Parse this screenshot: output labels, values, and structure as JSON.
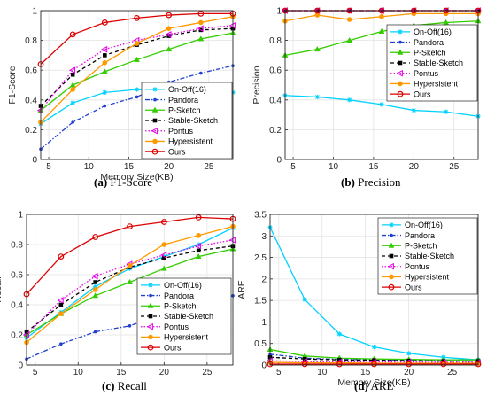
{
  "figure": {
    "captions": [
      {
        "tag": "(a)",
        "text": "F1-Score"
      },
      {
        "tag": "(b)",
        "text": "Precision"
      },
      {
        "tag": "(c)",
        "text": "Recall"
      },
      {
        "tag": "(d)",
        "text": "ARE"
      }
    ]
  },
  "chart_data": [
    {
      "type": "line",
      "title": "",
      "xlabel": "Memory Size(KB)",
      "ylabel": "F1-Score",
      "xlim": [
        4,
        28
      ],
      "ylim": [
        0,
        1
      ],
      "xticks": [
        "5",
        "10",
        "15",
        "20",
        "25"
      ],
      "yticks": [
        "0",
        "0.2",
        "0.4",
        "0.6",
        "0.8",
        "1"
      ],
      "grid": true,
      "legend_position": "bottom-right",
      "x": [
        4,
        8,
        12,
        16,
        20,
        24,
        28
      ],
      "series": [
        {
          "name": "On-Off(16)",
          "color": "#00d2ff",
          "marker": "star",
          "dash": "solid",
          "values": [
            0.24,
            0.38,
            0.45,
            0.47,
            0.46,
            0.45,
            0.45
          ]
        },
        {
          "name": "Pandora",
          "color": "#1f3fcf",
          "marker": "dot",
          "dash": "dashdot",
          "values": [
            0.07,
            0.25,
            0.36,
            0.42,
            0.52,
            0.58,
            0.63
          ]
        },
        {
          "name": "P-Sketch",
          "color": "#33cc00",
          "marker": "triangle",
          "dash": "solid",
          "values": [
            0.33,
            0.5,
            0.59,
            0.67,
            0.74,
            0.81,
            0.85
          ]
        },
        {
          "name": "Stable-Sketch",
          "color": "#000000",
          "marker": "square",
          "dash": "dashed",
          "values": [
            0.36,
            0.57,
            0.7,
            0.77,
            0.83,
            0.87,
            0.88
          ]
        },
        {
          "name": "Pontus",
          "color": "#e600e6",
          "marker": "tri-left",
          "dash": "dotted",
          "values": [
            0.33,
            0.6,
            0.74,
            0.8,
            0.84,
            0.88,
            0.9
          ]
        },
        {
          "name": "Hypersistent",
          "color": "#ff9900",
          "marker": "circle-filled",
          "dash": "solid",
          "values": [
            0.25,
            0.47,
            0.65,
            0.78,
            0.88,
            0.92,
            0.96
          ]
        },
        {
          "name": "Ours",
          "color": "#dd0000",
          "marker": "circle-open",
          "dash": "solid",
          "values": [
            0.64,
            0.84,
            0.92,
            0.95,
            0.97,
            0.98,
            0.98
          ]
        }
      ]
    },
    {
      "type": "line",
      "title": "",
      "xlabel": "",
      "ylabel": "Precision",
      "xlim": [
        4,
        28
      ],
      "ylim": [
        0,
        1
      ],
      "xticks": [
        "5",
        "10",
        "15",
        "20",
        "25"
      ],
      "yticks": [
        "0",
        "0.2",
        "0.4",
        "0.6",
        "0.8",
        "1"
      ],
      "grid": true,
      "legend_position": "bottom-right",
      "x": [
        4,
        8,
        12,
        16,
        20,
        24,
        28
      ],
      "series": [
        {
          "name": "On-Off(16)",
          "color": "#00d2ff",
          "marker": "star",
          "dash": "solid",
          "values": [
            0.43,
            0.42,
            0.4,
            0.37,
            0.33,
            0.32,
            0.29
          ]
        },
        {
          "name": "Pandora",
          "color": "#1f3fcf",
          "marker": "dot",
          "dash": "dashdot",
          "values": [
            1.0,
            1.0,
            1.0,
            1.0,
            1.0,
            1.0,
            1.0
          ]
        },
        {
          "name": "P-Sketch",
          "color": "#33cc00",
          "marker": "triangle",
          "dash": "solid",
          "values": [
            0.7,
            0.74,
            0.8,
            0.86,
            0.9,
            0.92,
            0.93
          ]
        },
        {
          "name": "Stable-Sketch",
          "color": "#000000",
          "marker": "square",
          "dash": "dashed",
          "values": [
            1.0,
            1.0,
            1.0,
            1.0,
            1.0,
            1.0,
            1.0
          ]
        },
        {
          "name": "Pontus",
          "color": "#e600e6",
          "marker": "tri-left",
          "dash": "dotted",
          "values": [
            1.0,
            1.0,
            1.0,
            1.0,
            1.0,
            1.0,
            1.0
          ]
        },
        {
          "name": "Hypersistent",
          "color": "#ff9900",
          "marker": "circle-filled",
          "dash": "solid",
          "values": [
            0.93,
            0.97,
            0.94,
            0.96,
            0.98,
            0.98,
            0.98
          ]
        },
        {
          "name": "Ours",
          "color": "#dd0000",
          "marker": "circle-open",
          "dash": "solid",
          "values": [
            1.0,
            1.0,
            1.0,
            1.0,
            1.0,
            1.0,
            1.0
          ]
        }
      ]
    },
    {
      "type": "line",
      "title": "",
      "xlabel": "",
      "ylabel": "Recall",
      "xlim": [
        4,
        28
      ],
      "ylim": [
        0,
        1
      ],
      "xticks": [
        "5",
        "10",
        "15",
        "20",
        "25"
      ],
      "yticks": [
        "0",
        "0.2",
        "0.4",
        "0.6",
        "0.8",
        "1"
      ],
      "grid": true,
      "legend_position": "bottom-right",
      "x": [
        4,
        8,
        12,
        16,
        20,
        24,
        28
      ],
      "series": [
        {
          "name": "On-Off(16)",
          "color": "#00d2ff",
          "marker": "star",
          "dash": "solid",
          "values": [
            0.18,
            0.35,
            0.52,
            0.64,
            0.72,
            0.8,
            0.91
          ]
        },
        {
          "name": "Pandora",
          "color": "#1f3fcf",
          "marker": "dot",
          "dash": "dashdot",
          "values": [
            0.04,
            0.14,
            0.22,
            0.26,
            0.34,
            0.4,
            0.46
          ]
        },
        {
          "name": "P-Sketch",
          "color": "#33cc00",
          "marker": "triangle",
          "dash": "solid",
          "values": [
            0.2,
            0.34,
            0.46,
            0.55,
            0.64,
            0.72,
            0.77
          ]
        },
        {
          "name": "Stable-Sketch",
          "color": "#000000",
          "marker": "square",
          "dash": "dashed",
          "values": [
            0.22,
            0.4,
            0.55,
            0.65,
            0.71,
            0.76,
            0.79
          ]
        },
        {
          "name": "Pontus",
          "color": "#e600e6",
          "marker": "tri-left",
          "dash": "dotted",
          "values": [
            0.2,
            0.43,
            0.59,
            0.67,
            0.73,
            0.79,
            0.83
          ]
        },
        {
          "name": "Hypersistent",
          "color": "#ff9900",
          "marker": "circle-filled",
          "dash": "solid",
          "values": [
            0.15,
            0.34,
            0.5,
            0.66,
            0.8,
            0.86,
            0.92
          ]
        },
        {
          "name": "Ours",
          "color": "#dd0000",
          "marker": "circle-open",
          "dash": "solid",
          "values": [
            0.47,
            0.72,
            0.85,
            0.92,
            0.95,
            0.98,
            0.97
          ]
        }
      ]
    },
    {
      "type": "line",
      "title": "",
      "xlabel": "Memory Size(KB)",
      "ylabel": "ARE",
      "xlim": [
        4,
        28
      ],
      "ylim": [
        0,
        3.5
      ],
      "xticks": [
        "5",
        "10",
        "15",
        "20",
        "25"
      ],
      "yticks": [
        "0",
        "0.5",
        "1",
        "1.5",
        "2",
        "2.5",
        "3",
        "3.5"
      ],
      "grid": true,
      "legend_position": "top-right",
      "x": [
        4,
        8,
        12,
        16,
        20,
        24,
        28
      ],
      "series": [
        {
          "name": "On-Off(16)",
          "color": "#00d2ff",
          "marker": "star",
          "dash": "solid",
          "values": [
            3.2,
            1.52,
            0.72,
            0.42,
            0.27,
            0.18,
            0.12
          ]
        },
        {
          "name": "Pandora",
          "color": "#1f3fcf",
          "marker": "dot",
          "dash": "dashdot",
          "values": [
            0.25,
            0.16,
            0.13,
            0.12,
            0.11,
            0.1,
            0.09
          ]
        },
        {
          "name": "P-Sketch",
          "color": "#33cc00",
          "marker": "triangle",
          "dash": "solid",
          "values": [
            0.36,
            0.21,
            0.16,
            0.14,
            0.13,
            0.12,
            0.12
          ]
        },
        {
          "name": "Stable-Sketch",
          "color": "#000000",
          "marker": "square",
          "dash": "dashed",
          "values": [
            0.18,
            0.14,
            0.12,
            0.11,
            0.1,
            0.09,
            0.09
          ]
        },
        {
          "name": "Pontus",
          "color": "#e600e6",
          "marker": "tri-left",
          "dash": "dotted",
          "values": [
            0.1,
            0.08,
            0.07,
            0.07,
            0.07,
            0.06,
            0.06
          ]
        },
        {
          "name": "Hypersistent",
          "color": "#ff9900",
          "marker": "circle-filled",
          "dash": "solid",
          "values": [
            0.06,
            0.05,
            0.05,
            0.04,
            0.04,
            0.04,
            0.04
          ]
        },
        {
          "name": "Ours",
          "color": "#dd0000",
          "marker": "circle-open",
          "dash": "solid",
          "values": [
            0.02,
            0.02,
            0.02,
            0.02,
            0.02,
            0.02,
            0.02
          ]
        }
      ]
    }
  ]
}
